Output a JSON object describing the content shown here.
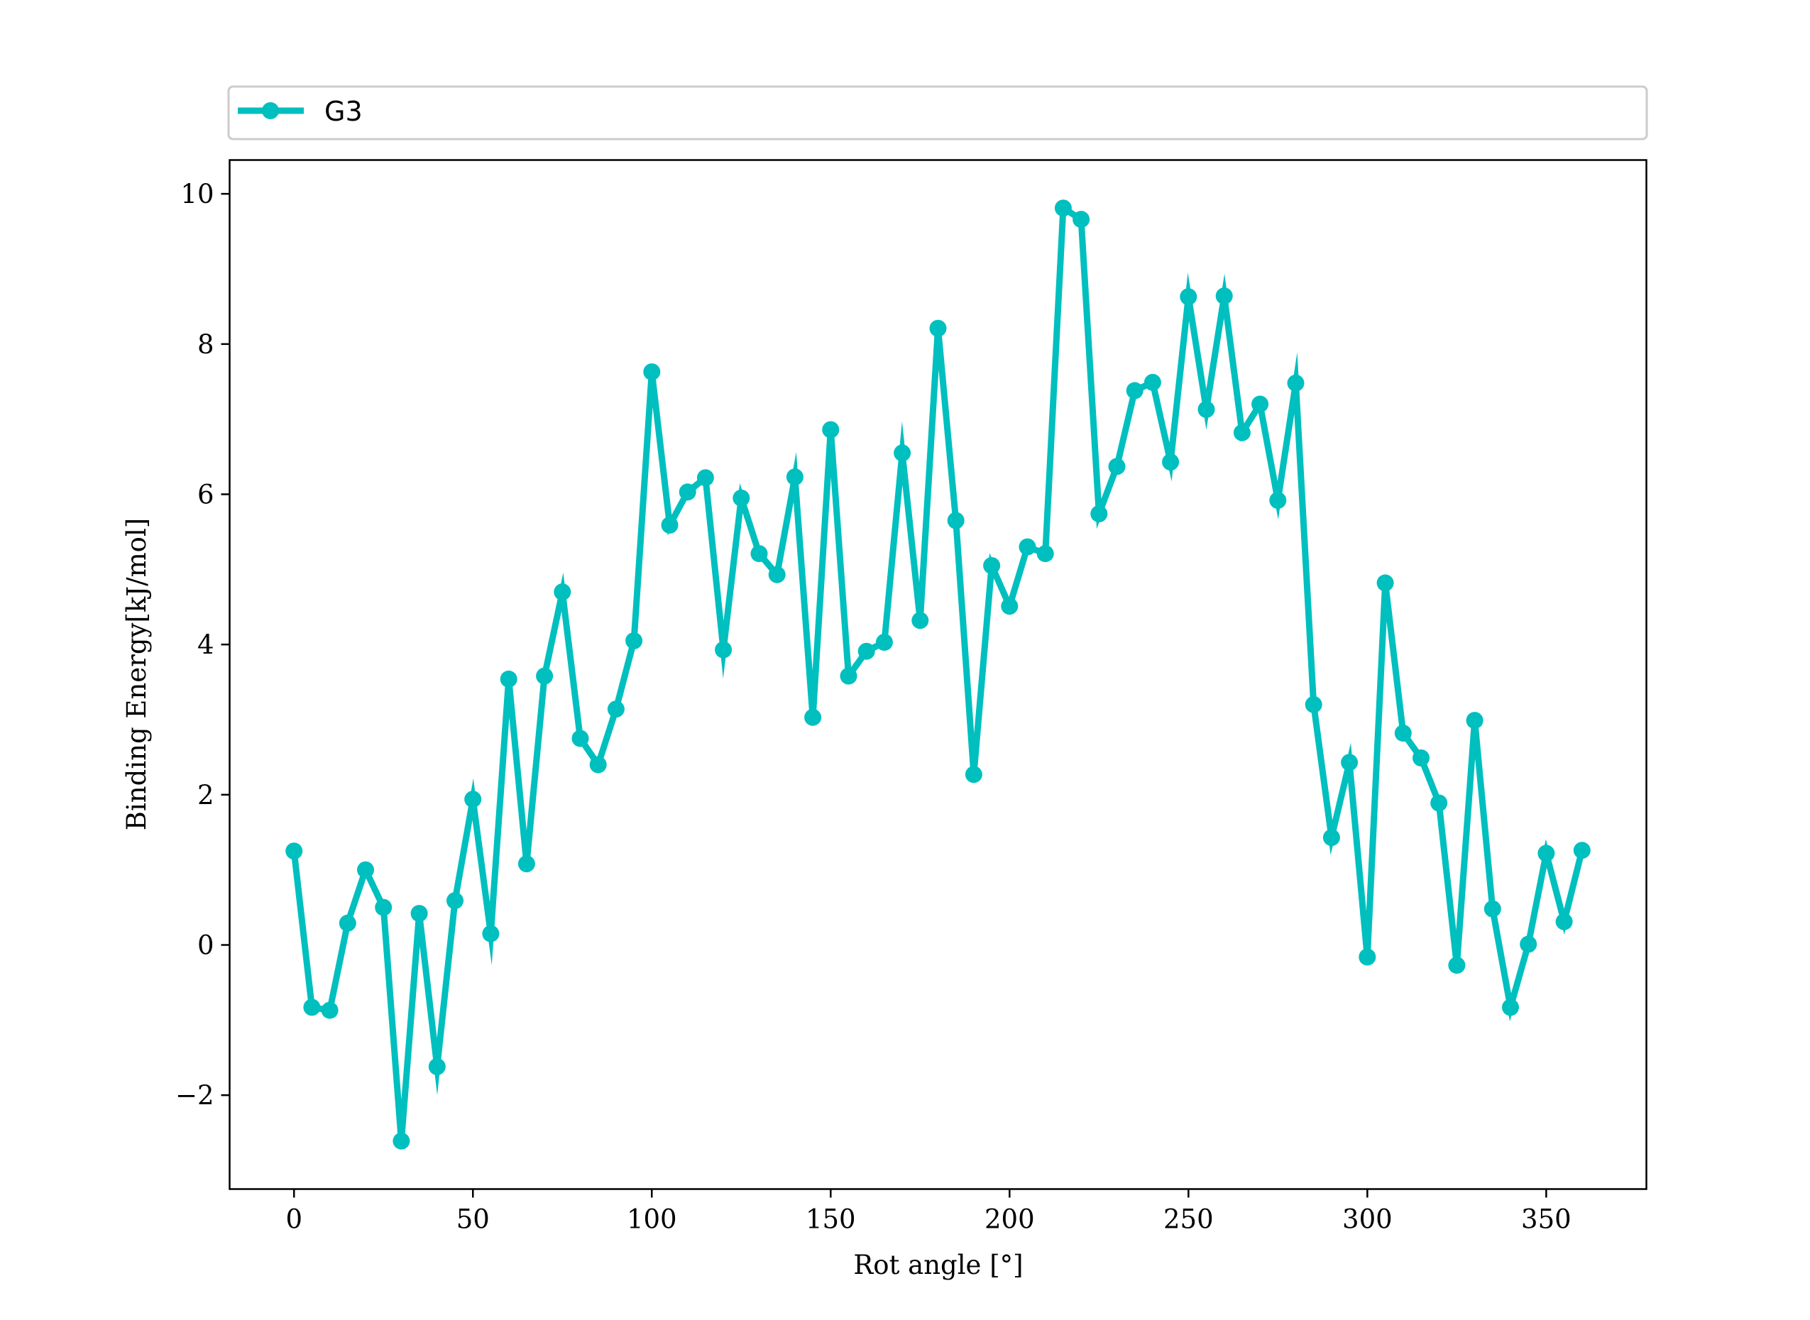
{
  "chart_data": {
    "type": "line",
    "xlabel": "Rot angle [°]",
    "ylabel": "Binding Energy[kJ/mol]",
    "xlim": [
      -18,
      378
    ],
    "ylim": [
      -3.25,
      10.45
    ],
    "xticks": [
      0,
      50,
      100,
      150,
      200,
      250,
      300,
      350
    ],
    "yticks": [
      -2,
      0,
      2,
      4,
      6,
      8,
      10
    ],
    "ytick_labels": [
      "−2",
      "0",
      "2",
      "4",
      "6",
      "8",
      "10"
    ],
    "grid": false,
    "legend_position": "above plot, spanning full width",
    "series": [
      {
        "name": "G3",
        "color": "#00BFBF",
        "marker": "circle",
        "x": [
          0,
          5,
          10,
          15,
          20,
          25,
          30,
          35,
          40,
          45,
          50,
          55,
          60,
          65,
          70,
          75,
          80,
          85,
          90,
          95,
          100,
          105,
          110,
          115,
          120,
          125,
          130,
          135,
          140,
          145,
          150,
          155,
          160,
          165,
          170,
          175,
          180,
          185,
          190,
          195,
          200,
          205,
          210,
          215,
          220,
          225,
          230,
          235,
          240,
          245,
          250,
          255,
          260,
          265,
          270,
          275,
          280,
          285,
          290,
          295,
          300,
          305,
          310,
          315,
          320,
          325,
          330,
          335,
          340,
          345,
          350,
          355,
          360
        ],
        "values": [
          1.25,
          -0.83,
          -0.87,
          0.29,
          1.0,
          0.5,
          -2.61,
          0.42,
          -1.62,
          0.59,
          1.94,
          0.15,
          3.54,
          1.08,
          3.58,
          4.7,
          2.75,
          2.4,
          3.14,
          4.05,
          7.63,
          5.59,
          6.03,
          6.22,
          3.93,
          5.95,
          5.21,
          4.93,
          6.23,
          3.03,
          6.86,
          3.58,
          3.91,
          4.03,
          6.55,
          4.32,
          8.21,
          5.65,
          2.27,
          5.05,
          4.51,
          5.3,
          5.21,
          9.81,
          9.66,
          5.74,
          6.37,
          7.38,
          7.49,
          6.43,
          8.63,
          7.13,
          8.64,
          6.82,
          7.2,
          5.92,
          7.48,
          3.2,
          1.43,
          2.43,
          -0.16,
          4.82,
          2.82,
          2.49,
          1.89,
          -0.27,
          2.99,
          0.48,
          -0.83,
          0.01,
          1.22,
          0.31,
          1.26
        ]
      }
    ]
  }
}
